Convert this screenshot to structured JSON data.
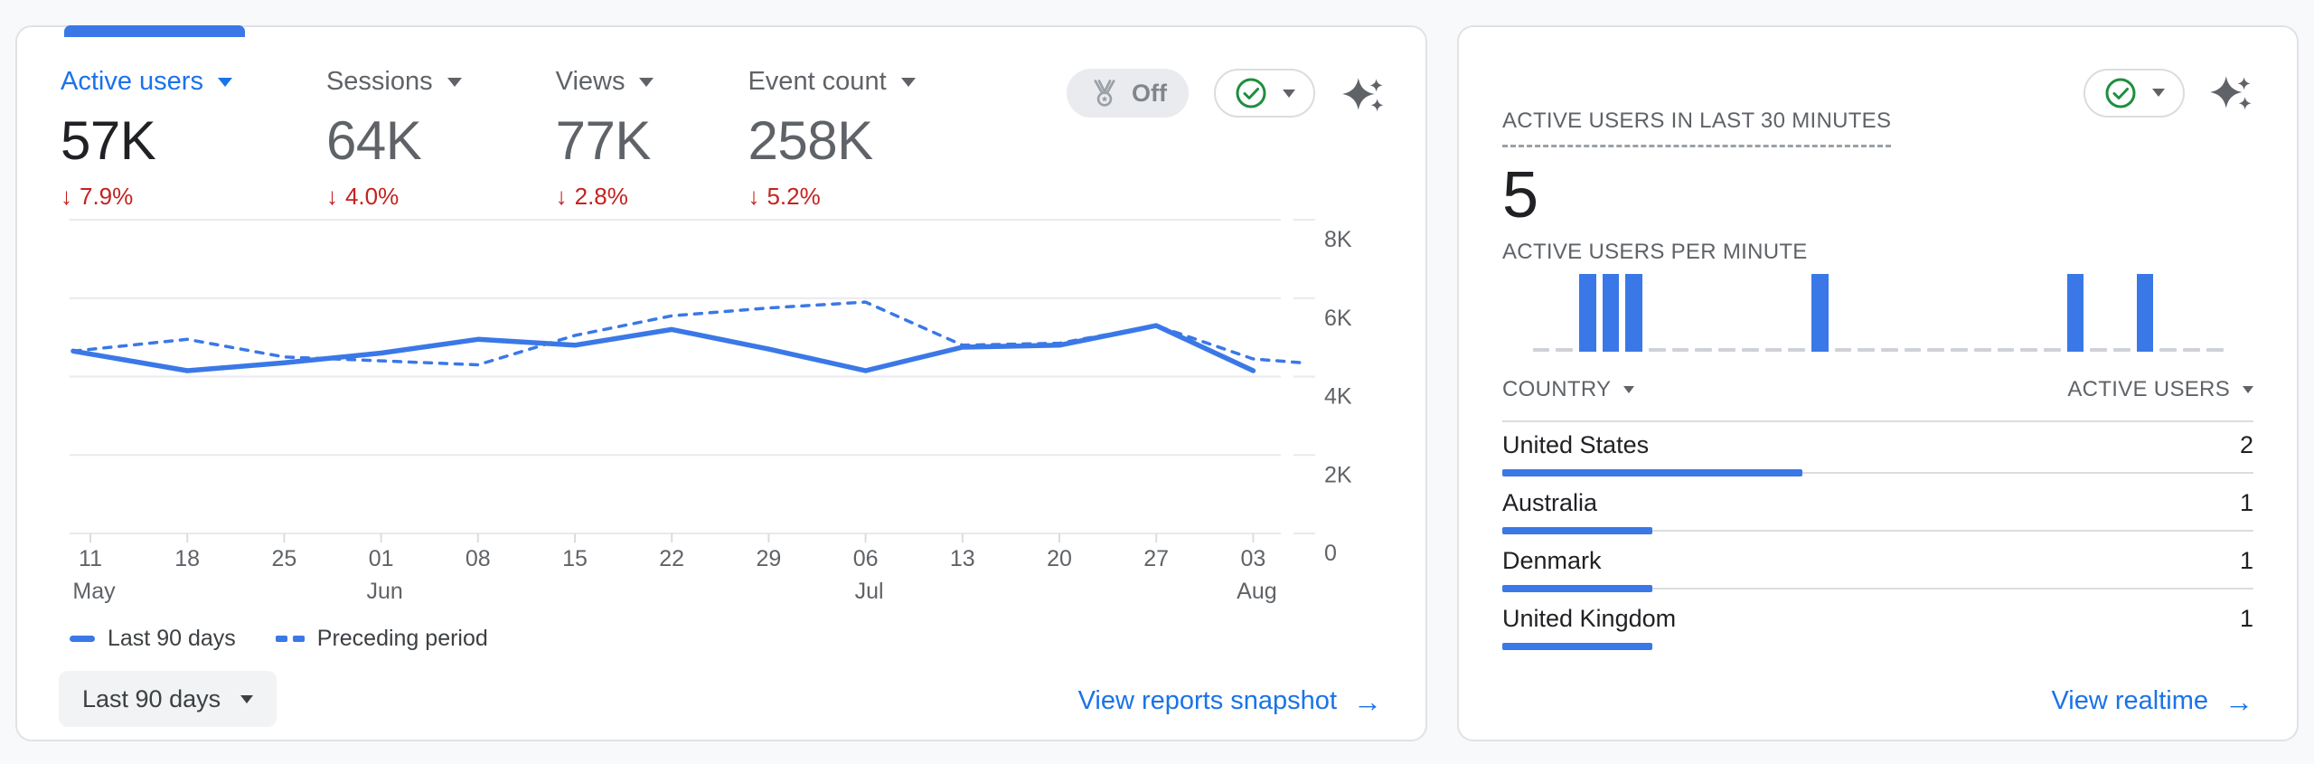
{
  "page": {
    "background_color": "#f8f9fa"
  },
  "colors": {
    "accent_blue": "#1a73e8",
    "chart_blue": "#3b78e7",
    "delta_red": "#c5221f",
    "status_green": "#1e8e3e",
    "text_primary": "#202124",
    "text_secondary": "#5f6368",
    "border": "#dadce0",
    "gridline": "#e8eaed",
    "chip_bg": "#e9ebee",
    "button_bg": "#f1f3f4",
    "card_bg": "#ffffff"
  },
  "overview_card": {
    "metrics": [
      {
        "label": "Active users",
        "value": "57K",
        "delta_arrow": "↓",
        "delta": "7.9%",
        "delta_direction": "down",
        "selected": true
      },
      {
        "label": "Sessions",
        "value": "64K",
        "delta_arrow": "↓",
        "delta": "4.0%",
        "delta_direction": "down",
        "selected": false
      },
      {
        "label": "Views",
        "value": "77K",
        "delta_arrow": "↓",
        "delta": "2.8%",
        "delta_direction": "down",
        "selected": false
      },
      {
        "label": "Event count",
        "value": "258K",
        "delta_arrow": "↓",
        "delta": "5.2%",
        "delta_direction": "down",
        "selected": false
      }
    ],
    "benchmarking_chip": {
      "icon": "medal-icon",
      "label": "Off"
    },
    "status_control": {
      "icon": "check-circle-icon",
      "state_color": "#1e8e3e"
    },
    "insights_icon": "sparkle-icon",
    "legend": [
      {
        "label": "Last 90 days",
        "style": "solid"
      },
      {
        "label": "Preceding period",
        "style": "dashed"
      }
    ],
    "date_range_button": {
      "label": "Last 90 days"
    },
    "footer_link": {
      "label": "View reports snapshot",
      "arrow": "→"
    }
  },
  "realtime_card": {
    "title": "ACTIVE USERS IN LAST 30 MINUTES",
    "value": "5",
    "per_minute_label": "ACTIVE USERS PER MINUTE",
    "status_control": {
      "icon": "check-circle-icon",
      "state_color": "#1e8e3e"
    },
    "insights_icon": "sparkle-icon",
    "table": {
      "country_header": "COUNTRY",
      "users_header": "ACTIVE USERS",
      "rows": [
        {
          "country": "United States",
          "active_users": "2",
          "bar_pct": 40
        },
        {
          "country": "Australia",
          "active_users": "1",
          "bar_pct": 20
        },
        {
          "country": "Denmark",
          "active_users": "1",
          "bar_pct": 20
        },
        {
          "country": "United Kingdom",
          "active_users": "1",
          "bar_pct": 20
        }
      ]
    },
    "footer_link": {
      "label": "View realtime",
      "arrow": "→"
    }
  },
  "chart_data": [
    {
      "type": "line",
      "title": "Active users trend (last 90 days vs preceding period)",
      "x_ticks": [
        {
          "day": "11",
          "month": "May"
        },
        {
          "day": "18",
          "month": ""
        },
        {
          "day": "25",
          "month": ""
        },
        {
          "day": "01",
          "month": "Jun"
        },
        {
          "day": "08",
          "month": ""
        },
        {
          "day": "15",
          "month": ""
        },
        {
          "day": "22",
          "month": ""
        },
        {
          "day": "29",
          "month": ""
        },
        {
          "day": "06",
          "month": "Jul"
        },
        {
          "day": "13",
          "month": ""
        },
        {
          "day": "20",
          "month": ""
        },
        {
          "day": "27",
          "month": ""
        },
        {
          "day": "03",
          "month": "Aug"
        }
      ],
      "series": [
        {
          "name": "Last 90 days",
          "style": "solid",
          "values": [
            4650,
            4150,
            4350,
            4600,
            4950,
            4800,
            5200,
            4700,
            4150,
            4750,
            4800,
            5300,
            4150
          ]
        },
        {
          "name": "Preceding period",
          "style": "dashed",
          "values": [
            4650,
            4950,
            4500,
            4400,
            4300,
            5050,
            5550,
            5750,
            5900,
            4800,
            4850,
            5300,
            4450
          ],
          "tail_value": 4350
        }
      ],
      "ylim": [
        0,
        8000
      ],
      "yticks": [
        {
          "value": 8000,
          "label": "8K"
        },
        {
          "value": 6000,
          "label": "6K"
        },
        {
          "value": 4000,
          "label": "4K"
        },
        {
          "value": 2000,
          "label": "2K"
        },
        {
          "value": 0,
          "label": "0"
        }
      ],
      "grid": "horizontal",
      "legend_position": "bottom-left",
      "line_color": "#3b78e7"
    },
    {
      "type": "bar",
      "title": "ACTIVE USERS PER MINUTE",
      "x_description": "last 30 minutes, one slot per minute",
      "values": [
        0,
        0,
        1,
        1,
        1,
        0,
        0,
        0,
        0,
        0,
        0,
        0,
        1,
        0,
        0,
        0,
        0,
        0,
        0,
        0,
        0,
        0,
        0,
        1,
        0,
        0,
        1,
        0,
        0,
        0
      ],
      "ylim": [
        0,
        1
      ],
      "bar_color": "#3b78e7"
    },
    {
      "type": "bar",
      "orientation": "horizontal",
      "title": "Active users by country (last 30 minutes)",
      "categories": [
        "United States",
        "Australia",
        "Denmark",
        "United Kingdom"
      ],
      "values": [
        2,
        1,
        1,
        1
      ],
      "ylim": [
        0,
        5
      ]
    }
  ]
}
